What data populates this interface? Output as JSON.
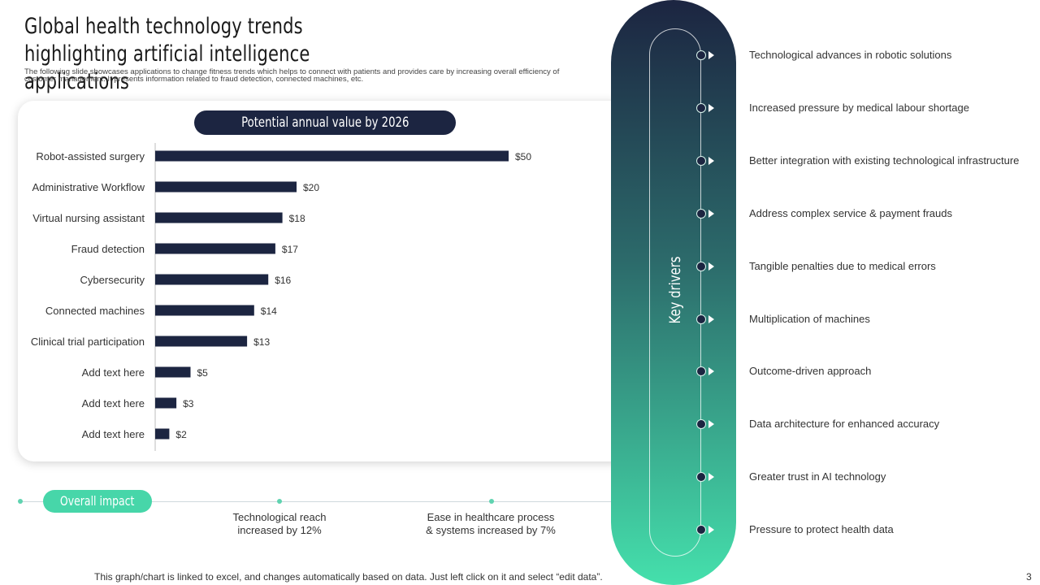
{
  "slide": {
    "title": "Global health technology trends highlighting artificial intelligence applications",
    "subtitle": "The following slide showcases applications to change fitness trends which helps to connect with patients and provides care by increasing overall efficiency of customer management. It presents information related to fraud detection, connected machines, etc.",
    "footer": "This graph/chart is linked to excel, and changes automatically based on data. Just left click on it and select “edit data”.",
    "page_number": "3"
  },
  "chart_data": {
    "type": "bar",
    "orientation": "horizontal",
    "title": "Potential annual value by 2026",
    "categories": [
      "Robot-assisted surgery",
      "Administrative Workflow",
      "Virtual nursing assistant",
      "Fraud detection",
      "Cybersecurity",
      "Connected machines",
      "Clinical trial participation",
      "Add text here",
      "Add text here",
      "Add text here"
    ],
    "values": [
      50,
      20,
      18,
      17,
      16,
      14,
      13,
      5,
      3,
      2
    ],
    "data_labels": [
      "$50",
      "$20",
      "$18",
      "$17",
      "$16",
      "$14",
      "$13",
      "$5",
      "$3",
      "$2"
    ],
    "xlim": [
      0,
      50
    ],
    "bar_color": "#1c2541",
    "grid": false
  },
  "impact": {
    "label": "Overall impact",
    "items": [
      {
        "line1": "Technological reach",
        "line2": "increased by 12%"
      },
      {
        "line1": "Ease in healthcare process",
        "line2": "& systems increased by 7%"
      }
    ]
  },
  "drivers": {
    "label": "Key drivers",
    "items": [
      "Technological advances  in robotic solutions",
      "Increased  pressure  by medical labour  shortage",
      "Better integration with existing technological infrastructure",
      "Address complex service  & payment frauds",
      "Tangible  penalties  due to medical errors",
      "Multiplication of machines",
      "Outcome-driven  approach",
      "Data architecture for enhanced accuracy",
      "Greater trust in AI technology",
      "Pressure to protect health data"
    ]
  },
  "colors": {
    "navy": "#1c2541",
    "teal": "#47d6a9"
  }
}
